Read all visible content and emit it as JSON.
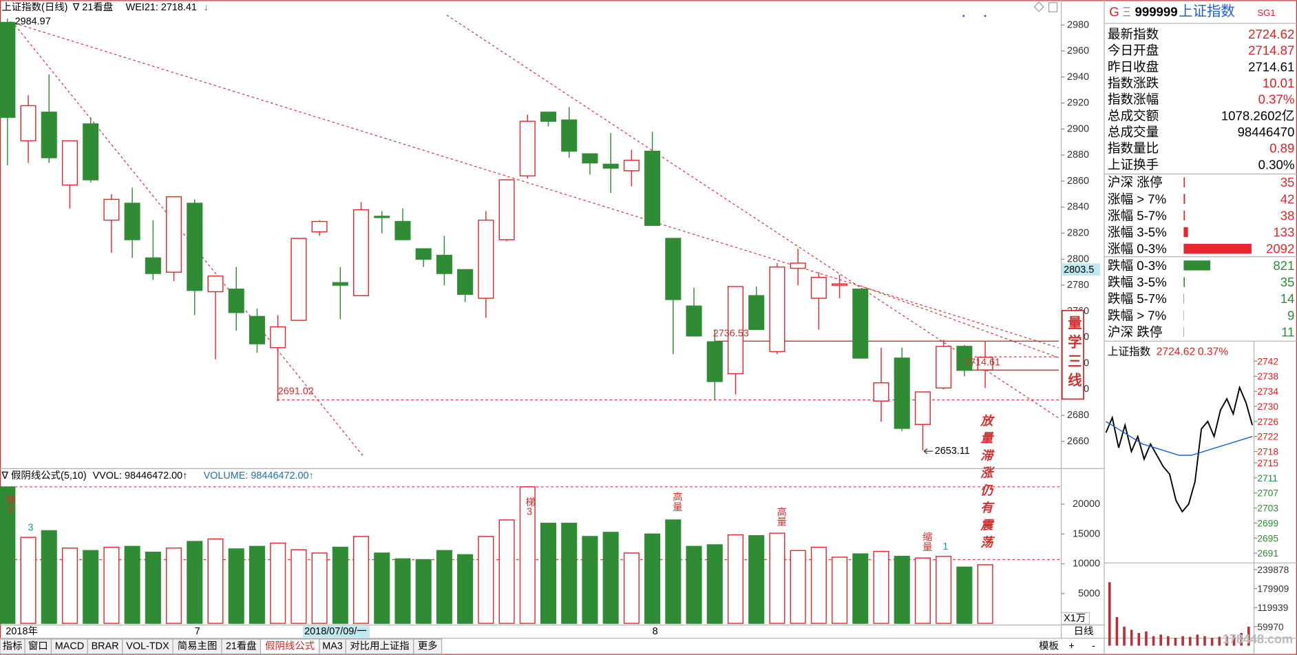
{
  "chart_data": [
    {
      "type": "candlestick",
      "title": "上证指数(日线)",
      "template": "∇ 21看盘",
      "indicator": "WEI21: 2718.41",
      "indicator_arrow": "↓",
      "categories": [
        "2018年",
        null,
        null,
        null,
        null,
        null,
        null,
        null,
        null,
        "7",
        null,
        null,
        null,
        null,
        null,
        null,
        null,
        null,
        null,
        null,
        null,
        null,
        null,
        null,
        null,
        null,
        null,
        null,
        null,
        null,
        null,
        "8",
        null,
        null,
        null,
        null,
        null,
        null,
        null,
        null,
        null,
        null,
        null,
        null,
        null,
        null,
        null,
        null
      ],
      "open": [
        2982,
        2891,
        2913,
        2857,
        2904,
        2830,
        2843,
        2801,
        2790,
        2843,
        2775,
        2777,
        2756,
        2732,
        2753,
        2821,
        2782,
        2772,
        2833,
        2829,
        2808,
        2803,
        2792,
        2770,
        2815,
        2864,
        2913,
        2907,
        2881,
        2873,
        2868,
        2883,
        2816,
        2764,
        2736.53,
        2712,
        2772,
        2729,
        2793,
        2770,
        2780,
        2777,
        2691,
        2724,
        2673,
        2701,
        2733,
        2714.87
      ],
      "high": [
        2984.97,
        2926,
        2942,
        2891,
        2909,
        2850,
        2855,
        2830,
        2848,
        2846,
        2787,
        2794,
        2762,
        2757,
        2816,
        2830,
        2794,
        2844,
        2837,
        2839,
        2808,
        2818,
        2792,
        2837,
        2861,
        2911,
        2913,
        2917,
        2881,
        2897,
        2884,
        2898,
        2816,
        2778,
        2746,
        2779,
        2779,
        2797,
        2808,
        2790,
        2788,
        2777,
        2732,
        2732,
        2698,
        2738,
        2734,
        2737
      ],
      "low": [
        2872,
        2874,
        2874,
        2839,
        2859,
        2805,
        2801,
        2784,
        2783,
        2757,
        2723,
        2745,
        2728,
        2691.02,
        2753,
        2818,
        2754,
        2772,
        2820,
        2815,
        2794,
        2780,
        2767,
        2755,
        2814,
        2862,
        2902,
        2878,
        2865,
        2851,
        2856,
        2826,
        2727,
        2741,
        2692,
        2696,
        2746,
        2727,
        2780,
        2746,
        2770,
        2724,
        2675,
        2668,
        2653.11,
        2700,
        2710,
        2701
      ],
      "close": [
        2909,
        2918,
        2878,
        2891,
        2861,
        2846,
        2815,
        2789,
        2848,
        2776,
        2787,
        2759,
        2735,
        2748,
        2816,
        2829,
        2780,
        2838,
        2832,
        2815,
        2800,
        2789,
        2773,
        2830,
        2861,
        2906,
        2906,
        2883,
        2874,
        2870,
        2876,
        2826,
        2769,
        2741,
        2706,
        2779,
        2746,
        2794,
        2797,
        2786,
        2781,
        2724,
        2705,
        2670,
        2698,
        2733,
        2714.61,
        2724.62
      ],
      "up_color": "#e8262d",
      "down_color": "#2f8c35",
      "ylim": [
        2639.7,
        2987.6
      ],
      "yticks": [
        2660,
        2680,
        2700,
        2720,
        2740,
        2760,
        2780,
        2800,
        2820,
        2840,
        2860,
        2880,
        2900,
        2920,
        2940,
        2960,
        2980
      ],
      "cursor_value": "2803.5",
      "cursor_date": "2018/07/09/一",
      "box_text": "量学三线",
      "note": "放量滞涨仍有震荡"
    },
    {
      "type": "bar",
      "title": "∇ 假阴线公式(5,10)",
      "indicators": [
        "VVOL: 98446472.00↑",
        "VOLUME: 98446472.00↑"
      ],
      "unit_label": "X1万",
      "values": [
        22900,
        14444,
        15555,
        12639,
        12222,
        12778,
        12917,
        11944,
        12639,
        13750,
        14167,
        12500,
        12917,
        13472,
        12361,
        11806,
        12778,
        14583,
        11806,
        10833,
        10694,
        12222,
        11528,
        14583,
        17361,
        22917,
        16806,
        16806,
        14583,
        15278,
        11806,
        15000,
        17361,
        12917,
        13194,
        14861,
        14722,
        15139,
        12222,
        12778,
        11111,
        11667,
        12083,
        11250,
        10972,
        11250,
        9444,
        9845
      ],
      "up_color": "#e8262d",
      "down_color": "#2f8c35",
      "ylim": [
        0,
        25700
      ],
      "yticks": [
        5000,
        10000,
        15000,
        20000
      ],
      "annotations": [
        "梯3",
        "3",
        "梯3",
        "高量",
        "高量",
        "缩量",
        "1"
      ]
    },
    {
      "type": "line",
      "title": "上证指数",
      "last": "2724.62",
      "change": "0.37%",
      "series": [
        {
          "color": "#000000",
          "values": [
            2723,
            2727,
            2719,
            2725,
            2718,
            2722,
            2716,
            2720,
            2717,
            2714,
            2712,
            2705,
            2702,
            2704,
            2710,
            2724,
            2726,
            2722,
            2729,
            2732,
            2728,
            2735,
            2731,
            2725
          ]
        },
        {
          "color": "#1f5fd0",
          "values": [
            2726,
            2724,
            2722,
            2720,
            2719,
            2718,
            2717,
            2717,
            2718,
            2719,
            2720,
            2721,
            2722
          ]
        }
      ],
      "ylim": [
        2688.4,
        2746
      ],
      "yticks": [
        2691,
        2695,
        2699,
        2703,
        2707,
        2711,
        2715,
        2718,
        2722,
        2726,
        2730,
        2734,
        2738,
        2742
      ]
    },
    {
      "type": "bar",
      "color": "#b83036",
      "values": [
        200000,
        90000,
        60000,
        50000,
        40000,
        45000,
        30000,
        35000,
        30000,
        25000,
        30000,
        28000,
        35000,
        30000,
        25000,
        28000,
        30000,
        35000,
        40000,
        60000
      ],
      "ylim": [
        0,
        260737
      ],
      "yticks": [
        59970,
        119939,
        179909,
        239878
      ]
    }
  ],
  "quote_panel": {
    "header": {
      "g": "G",
      "menu": "Ξ",
      "code": "999999",
      "name": "上证指数",
      "tag": "SG1"
    },
    "rows": [
      {
        "label": "最新指数",
        "value": "2724.62",
        "color": "#e0201e"
      },
      {
        "label": "今日开盘",
        "value": "2714.87",
        "color": "#e0201e"
      },
      {
        "label": "昨日收盘",
        "value": "2714.61",
        "color": "#000000"
      },
      {
        "label": "指数涨跌",
        "value": "10.01",
        "color": "#e0201e"
      },
      {
        "label": "指数涨幅",
        "value": "0.37%",
        "color": "#e0201e"
      },
      {
        "label": "总成交额",
        "value": "1078.2602亿",
        "color": "#000000"
      },
      {
        "label": "总成交量",
        "value": "98446470",
        "color": "#000000"
      },
      {
        "label": "指数量比",
        "value": "0.89",
        "color": "#e0201e"
      },
      {
        "label": "上证换手",
        "value": "0.30%",
        "color": "#000000"
      }
    ]
  },
  "breadth": {
    "rows": [
      {
        "label": "沪深 涨停",
        "value": 35,
        "color": "#e8262d"
      },
      {
        "label": "涨幅 > 7%",
        "value": 42,
        "color": "#e8262d"
      },
      {
        "label": "涨幅 5-7%",
        "value": 38,
        "color": "#e8262d"
      },
      {
        "label": "涨幅 3-5%",
        "value": 133,
        "color": "#e8262d"
      },
      {
        "label": "涨幅 0-3%",
        "value": 2092,
        "color": "#e8262d"
      },
      {
        "label": "跌幅 0-3%",
        "value": 821,
        "color": "#2f8c35"
      },
      {
        "label": "跌幅 3-5%",
        "value": 35,
        "color": "#2f8c35"
      },
      {
        "label": "跌幅 5-7%",
        "value": 14,
        "color": "#2f8c35"
      },
      {
        "label": "跌幅 > 7%",
        "value": 9,
        "color": "#2f8c35"
      },
      {
        "label": "沪深 跌停",
        "value": 11,
        "color": "#2f8c35"
      }
    ]
  },
  "toolbar": {
    "tabs": [
      {
        "label": "指标",
        "active": false
      },
      {
        "label": "窗口",
        "active": false
      },
      {
        "label": "MACD",
        "active": false
      },
      {
        "label": "BRAR",
        "active": false
      },
      {
        "label": "VOL-TDX",
        "active": false
      },
      {
        "label": "简易主图",
        "active": false
      },
      {
        "label": "21看盘",
        "active": false
      },
      {
        "label": "假阴线公式",
        "active": true
      },
      {
        "label": "MA3",
        "active": false
      },
      {
        "label": "对比用上证指",
        "active": false
      },
      {
        "label": "更多",
        "active": false
      }
    ],
    "template": "模板",
    "period": "日线",
    "zoom_in": "+",
    "zoom_out": "-"
  },
  "watermark": "178448.com"
}
